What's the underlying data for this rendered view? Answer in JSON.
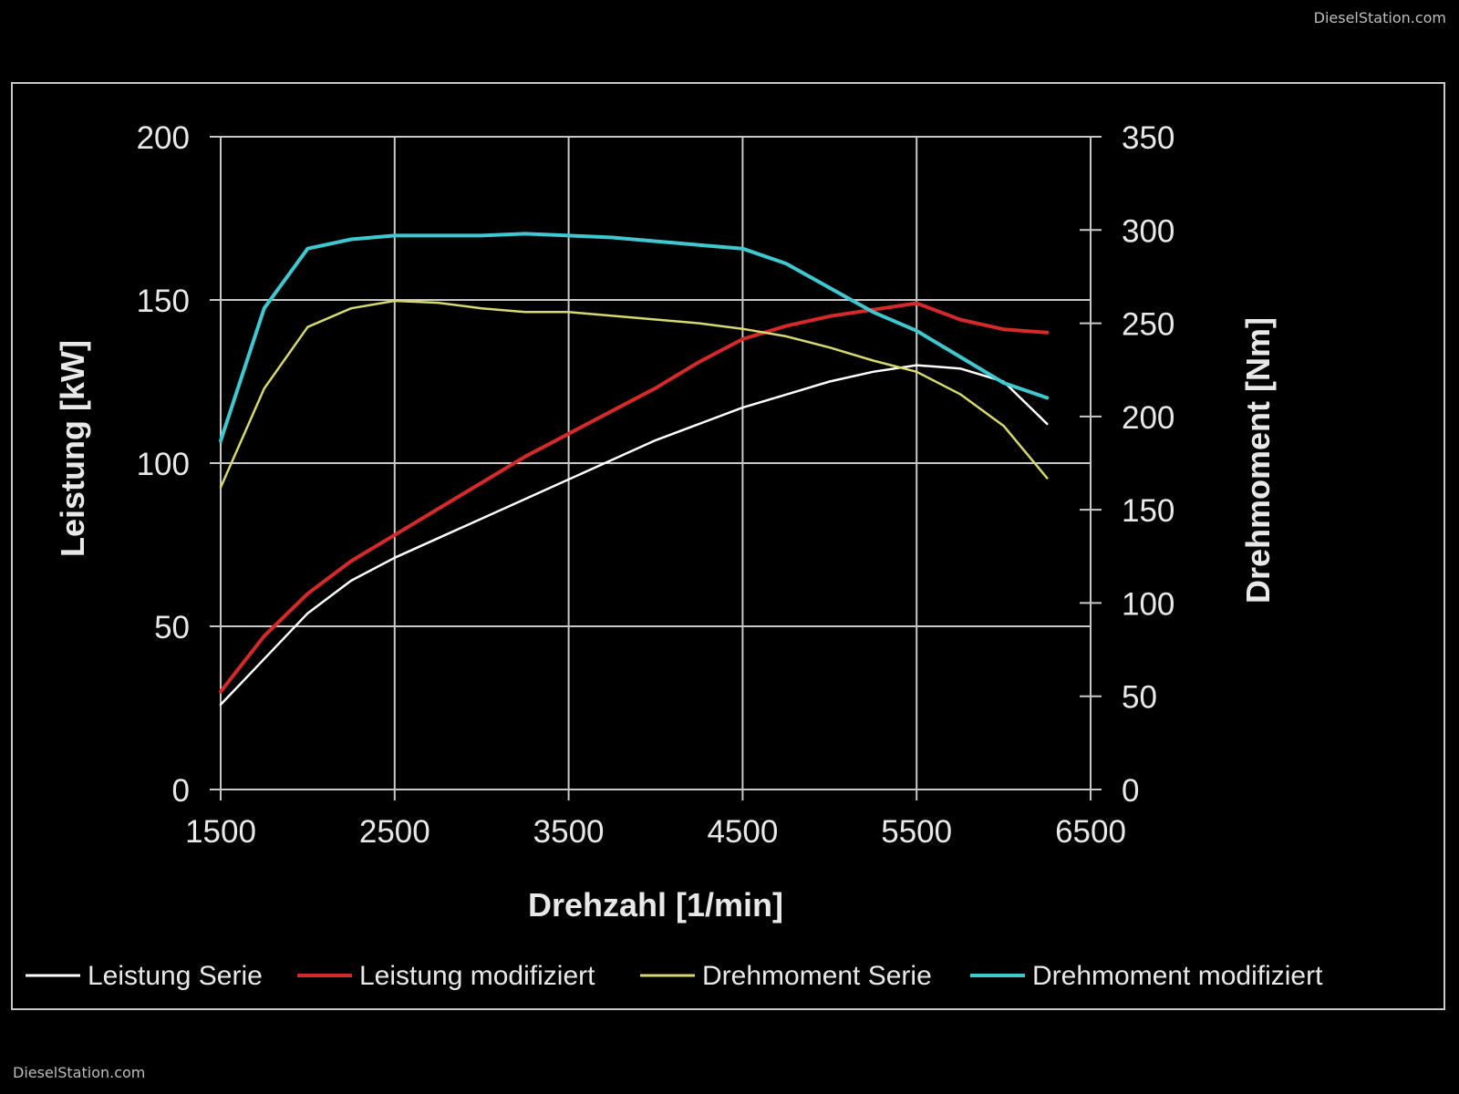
{
  "watermark": "DieselStation.com",
  "chart_data": {
    "type": "line",
    "title": "",
    "xlabel": "Drehzahl [1/min]",
    "ylabel_left": "Leistung [kW]",
    "ylabel_right": "Drehmoment [Nm]",
    "xlim": [
      1500,
      6500
    ],
    "ylim_left": [
      0,
      200
    ],
    "ylim_right": [
      0,
      350
    ],
    "x_ticks": [
      "1500",
      "2500",
      "3500",
      "4500",
      "5500",
      "6500"
    ],
    "y_left_ticks": [
      "0",
      "50",
      "100",
      "150",
      "200"
    ],
    "y_right_ticks": [
      "0",
      "50",
      "100",
      "150",
      "200",
      "250",
      "300",
      "350"
    ],
    "grid": true,
    "legend_position": "bottom",
    "series": [
      {
        "name": "Leistung Serie",
        "axis": "left",
        "color": "#ffffff",
        "x": [
          1500,
          1750,
          2000,
          2250,
          2500,
          2750,
          3000,
          3250,
          3500,
          3750,
          4000,
          4250,
          4500,
          4750,
          5000,
          5250,
          5500,
          5750,
          6000,
          6250
        ],
        "values": [
          26,
          40,
          54,
          64,
          71,
          77,
          83,
          89,
          95,
          101,
          107,
          112,
          117,
          121,
          125,
          128,
          130,
          129,
          125,
          112
        ]
      },
      {
        "name": "Leistung modifiziert",
        "axis": "left",
        "color": "#d42a2a",
        "x": [
          1500,
          1750,
          2000,
          2250,
          2500,
          2750,
          3000,
          3250,
          3500,
          3750,
          4000,
          4250,
          4500,
          4750,
          5000,
          5250,
          5500,
          5750,
          6000,
          6250
        ],
        "values": [
          30,
          47,
          60,
          70,
          78,
          86,
          94,
          102,
          109,
          116,
          123,
          131,
          138,
          142,
          145,
          147,
          149,
          144,
          141,
          140
        ]
      },
      {
        "name": "Drehmoment Serie",
        "axis": "right",
        "color": "#d8d870",
        "x": [
          1500,
          1750,
          2000,
          2250,
          2500,
          2750,
          3000,
          3250,
          3500,
          3750,
          4000,
          4250,
          4500,
          4750,
          5000,
          5250,
          5500,
          5750,
          6000,
          6250
        ],
        "values": [
          162,
          215,
          248,
          258,
          262,
          261,
          258,
          256,
          256,
          254,
          252,
          250,
          247,
          243,
          237,
          230,
          224,
          212,
          195,
          167
        ]
      },
      {
        "name": "Drehmoment modifiziert",
        "axis": "right",
        "color": "#40c8d0",
        "x": [
          1500,
          1750,
          2000,
          2250,
          2500,
          2750,
          3000,
          3250,
          3500,
          3750,
          4000,
          4250,
          4500,
          4750,
          5000,
          5250,
          5500,
          5750,
          6000,
          6250
        ],
        "values": [
          187,
          258,
          290,
          295,
          297,
          297,
          297,
          298,
          297,
          296,
          294,
          292,
          290,
          282,
          269,
          256,
          246,
          232,
          218,
          210
        ]
      }
    ]
  }
}
